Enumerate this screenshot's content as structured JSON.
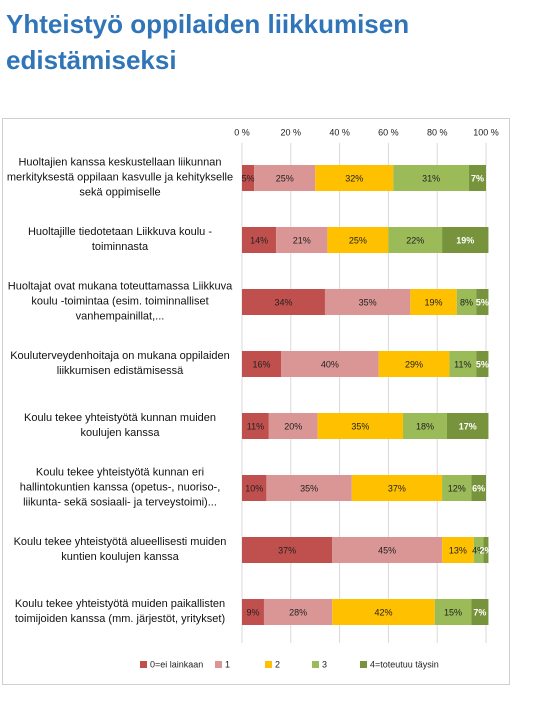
{
  "title": "Yhteistyö oppilaiden liikkumisen edistämiseksi",
  "chart_data": {
    "type": "stacked-barh",
    "categories": [
      "Huoltajien kanssa keskustellaan liikunnan merkityksestä oppilaan kasvulle ja kehitykselle sekä oppimiselle",
      "Huoltajille tiedotetaan Liikkuva koulu -toiminnasta",
      "Huoltajat ovat mukana toteuttamassa Liikkuva koulu -toimintaa (esim. toiminnalliset vanhempainillat,...",
      "Kouluterveydenhoitaja on mukana oppilaiden liikkumisen edistämisessä",
      "Koulu tekee yhteistyötä kunnan muiden koulujen kanssa",
      "Koulu tekee yhteistyötä kunnan eri hallintokuntien kanssa (opetus-, nuoriso-, liikunta- sekä sosiaali- ja terveystoimi)...",
      "Koulu tekee yhteistyötä alueellisesti muiden kuntien koulujen kanssa",
      "Koulu tekee yhteistyötä muiden paikallisten toimijoiden kanssa (mm. järjestöt, yritykset)"
    ],
    "series": [
      {
        "name": "0=ei lainkaan",
        "color": "#c0504d",
        "values": [
          5,
          14,
          34,
          16,
          11,
          10,
          37,
          9
        ],
        "value_labels": [
          "5%",
          "14%",
          "34%",
          "16%",
          "11%",
          "10%",
          "37%",
          "9%"
        ]
      },
      {
        "name": "1",
        "color": "#d99694",
        "values": [
          25,
          21,
          35,
          40,
          20,
          35,
          45,
          28
        ],
        "value_labels": [
          "25%",
          "21%",
          "35%",
          "40%",
          "20%",
          "35%",
          "45%",
          "28%"
        ]
      },
      {
        "name": "2",
        "color": "#ffc000",
        "values": [
          32,
          25,
          19,
          29,
          35,
          37,
          13,
          42
        ],
        "value_labels": [
          "32%",
          "25%",
          "19%",
          "29%",
          "35%",
          "37%",
          "13%",
          "42%"
        ]
      },
      {
        "name": "3",
        "color": "#9bbb59",
        "values": [
          31,
          22,
          8,
          11,
          18,
          12,
          4,
          15
        ],
        "value_labels": [
          "31%",
          "22%",
          "8%",
          "11%",
          "18%",
          "12%",
          "4%",
          "15%"
        ]
      },
      {
        "name": "4=toteutuu täysin",
        "color": "#77933c",
        "values": [
          7,
          19,
          5,
          5,
          17,
          6,
          2,
          7
        ],
        "value_labels": [
          "7%",
          "19%",
          "5%",
          "5%",
          "17%",
          "6%",
          "2%",
          "7%"
        ]
      }
    ],
    "xlim": [
      0,
      100
    ],
    "xticks": [
      {
        "value": 0,
        "label": "0 %"
      },
      {
        "value": 20,
        "label": "20 %"
      },
      {
        "value": 40,
        "label": "40 %"
      },
      {
        "value": 60,
        "label": "60 %"
      },
      {
        "value": 80,
        "label": "80 %"
      },
      {
        "value": 100,
        "label": "100 %"
      }
    ],
    "grid": true
  }
}
